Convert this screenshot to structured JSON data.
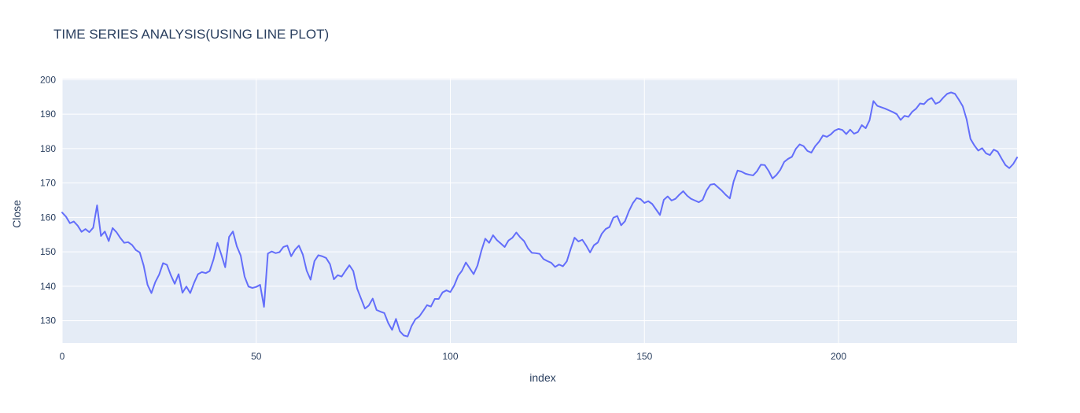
{
  "figure": {
    "title": "TIME SERIES ANALYSIS(USING LINE PLOT)",
    "background_color": "#ffffff",
    "plot_background_color": "#e5ecf6",
    "grid_color": "#ffffff",
    "text_color": "#2a3f5f",
    "line_color": "#636efa"
  },
  "axes": {
    "x": {
      "title": "index",
      "ticks": [
        0,
        50,
        100,
        150,
        200
      ],
      "range": [
        0,
        246
      ]
    },
    "y": {
      "title": "Close",
      "ticks": [
        130,
        140,
        150,
        160,
        170,
        180,
        190,
        200
      ],
      "range": [
        123.5,
        200.3
      ]
    }
  },
  "chart_data": {
    "type": "line",
    "title": "TIME SERIES ANALYSIS(USING LINE PLOT)",
    "xlabel": "index",
    "ylabel": "Close",
    "xlim": [
      0,
      246
    ],
    "ylim": [
      123.5,
      200.3
    ],
    "x_start": 0,
    "x_step": 1,
    "n_points": 247,
    "grid": true,
    "legend": false,
    "values": [
      161.4,
      160.2,
      158.3,
      158.8,
      157.6,
      155.8,
      156.6,
      155.7,
      157.0,
      163.5,
      154.6,
      155.9,
      153.1,
      156.9,
      155.7,
      154.0,
      152.6,
      152.8,
      152.0,
      150.5,
      149.8,
      146.0,
      140.4,
      138.0,
      141.2,
      143.4,
      146.7,
      146.2,
      143.2,
      140.7,
      143.5,
      138.1,
      139.9,
      138.0,
      141.0,
      143.5,
      144.1,
      143.8,
      144.4,
      147.8,
      152.6,
      149.2,
      145.5,
      154.3,
      155.9,
      151.6,
      148.9,
      142.8,
      139.9,
      139.5,
      139.8,
      140.4,
      134.0,
      149.5,
      150.1,
      149.6,
      149.9,
      151.4,
      151.8,
      148.7,
      150.6,
      151.8,
      149.2,
      144.5,
      141.9,
      147.3,
      149.0,
      148.7,
      148.2,
      146.4,
      142.0,
      143.2,
      142.8,
      144.5,
      146.1,
      144.4,
      139.3,
      136.4,
      133.5,
      134.4,
      136.4,
      133.1,
      132.6,
      132.2,
      129.3,
      127.3,
      130.5,
      126.9,
      125.7,
      125.4,
      128.4,
      130.4,
      131.2,
      132.8,
      134.5,
      134.1,
      136.3,
      136.3,
      138.2,
      138.8,
      138.3,
      140.2,
      143.0,
      144.5,
      146.9,
      145.2,
      143.5,
      146.0,
      150.3,
      153.8,
      152.6,
      154.8,
      153.4,
      152.4,
      151.4,
      153.3,
      154.1,
      155.6,
      154.2,
      153.1,
      151.0,
      149.7,
      149.6,
      149.4,
      147.9,
      147.3,
      146.8,
      145.6,
      146.3,
      145.8,
      147.2,
      150.8,
      154.1,
      153.0,
      153.5,
      151.8,
      149.8,
      151.9,
      152.7,
      155.2,
      156.6,
      157.2,
      159.9,
      160.4,
      157.7,
      158.9,
      161.8,
      164.1,
      165.6,
      165.3,
      164.2,
      164.7,
      163.9,
      162.3,
      160.7,
      165.1,
      166.1,
      164.9,
      165.4,
      166.6,
      167.6,
      166.3,
      165.4,
      164.9,
      164.4,
      165.1,
      167.8,
      169.5,
      169.7,
      168.7,
      167.7,
      166.5,
      165.5,
      170.5,
      173.6,
      173.3,
      172.7,
      172.4,
      172.2,
      173.4,
      175.3,
      175.2,
      173.5,
      171.3,
      172.3,
      173.8,
      176.1,
      177.0,
      177.6,
      179.9,
      181.2,
      180.7,
      179.3,
      178.8,
      180.7,
      182.0,
      183.8,
      183.4,
      184.1,
      185.2,
      185.7,
      185.4,
      184.2,
      185.5,
      184.3,
      184.8,
      186.8,
      185.9,
      188.2,
      193.8,
      192.4,
      192.0,
      191.6,
      191.1,
      190.6,
      190.0,
      188.3,
      189.5,
      189.2,
      190.7,
      191.6,
      193.1,
      192.9,
      194.1,
      194.7,
      193.0,
      193.5,
      194.8,
      195.9,
      196.3,
      195.9,
      194.2,
      192.3,
      188.5,
      182.8,
      180.9,
      179.4,
      180.1,
      178.6,
      178.1,
      179.7,
      179.1,
      177.1,
      175.2,
      174.3,
      175.5,
      177.4
    ]
  }
}
